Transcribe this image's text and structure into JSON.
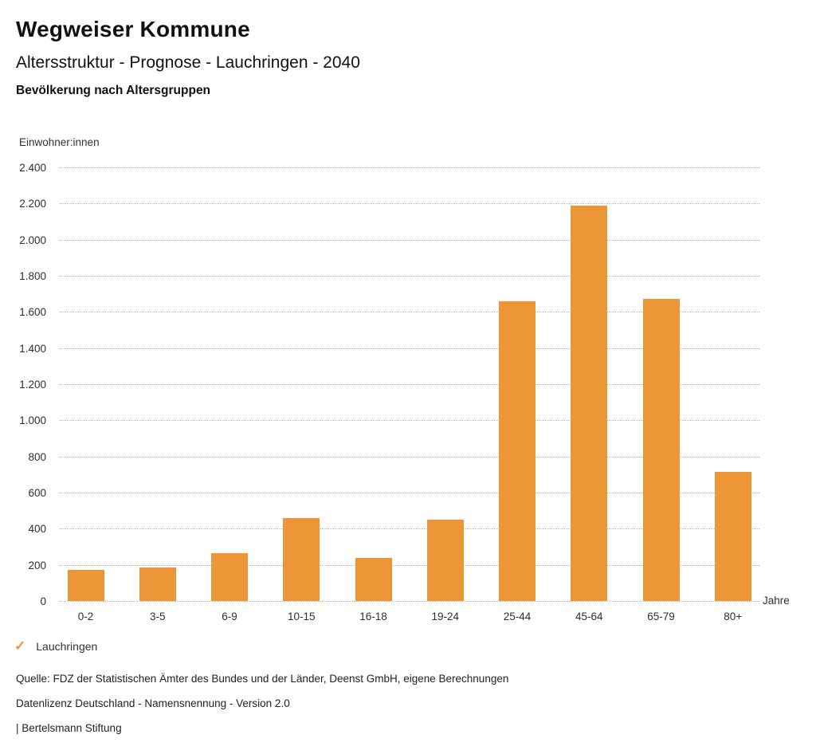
{
  "page": {
    "title": "Wegweiser Kommune",
    "subtitle": "Altersstruktur - Prognose - Lauchringen - 2040",
    "chart_heading": "Bevölkerung nach Altersgruppen"
  },
  "chart_data": {
    "type": "bar",
    "title": "Bevölkerung nach Altersgruppen",
    "categories": [
      "0-2",
      "3-5",
      "6-9",
      "10-15",
      "16-18",
      "19-24",
      "25-44",
      "45-64",
      "65-79",
      "80+"
    ],
    "values": [
      170,
      185,
      265,
      460,
      240,
      450,
      1660,
      2190,
      1670,
      715
    ],
    "series_name": "Lauchringen",
    "ylabel": "Einwohner:innen",
    "xlabel": "Jahre",
    "ylim": [
      0,
      2400
    ],
    "ytick_step": 200,
    "yticks": [
      "2.400",
      "2.200",
      "2.000",
      "1.800",
      "1.600",
      "1.400",
      "1.200",
      "1.000",
      "800",
      "600",
      "400",
      "200",
      "0"
    ],
    "grid": "horizontal-dotted",
    "bar_color": "#EC9638",
    "legend_position": "bottom-left"
  },
  "legend": {
    "check_icon": "✓",
    "label": "Lauchringen"
  },
  "footer": {
    "source": "Quelle: FDZ der Statistischen Ämter des Bundes und der Länder, Deenst GmbH, eigene Berechnungen",
    "license": "Datenlizenz Deutschland - Namensnennung - Version 2.0",
    "attribution": "| Bertelsmann Stiftung"
  }
}
